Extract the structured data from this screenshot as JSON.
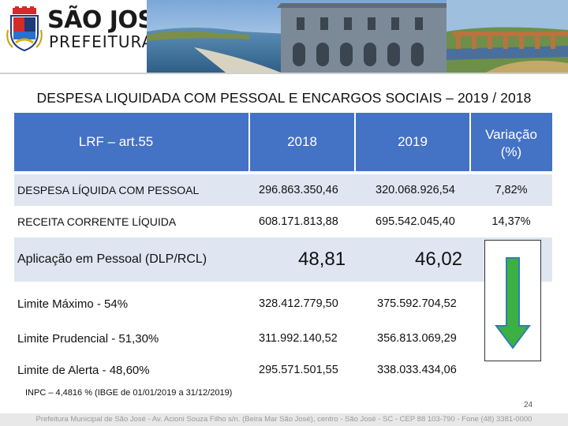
{
  "brand": {
    "name": "SÃO JOSÉ",
    "subtitle": "PREFEITURA"
  },
  "title": "DESPESA LIQUIDADA COM PESSOAL E ENCARGOS SOCIAIS – 2019 / 2018",
  "table": {
    "header": {
      "col0": "LRF – art.55",
      "col1": "2018",
      "col2": "2019",
      "col3_line1": "Variação",
      "col3_line2": "(%)"
    },
    "rows": [
      {
        "label": "DESPESA LÍQUIDA COM PESSOAL",
        "v2018": "296.863.350,46",
        "v2019": "320.068.926,54",
        "var": "7,82%"
      },
      {
        "label": "RECEITA CORRENTE LÍQUIDA",
        "v2018": "608.171.813,88",
        "v2019": "695.542.045,40",
        "var": "14,37%"
      },
      {
        "label": "Aplicação em Pessoal (DLP/RCL)",
        "v2018": "48,81",
        "v2019": "46,02"
      },
      {
        "label": "Limite Máximo - 54%",
        "v2018": "328.412.779,50",
        "v2019": "375.592.704,52"
      },
      {
        "label": "Limite Prudencial - 51,30%",
        "v2018": "311.992.140,52",
        "v2019": "356.813.069,29"
      },
      {
        "label": "Limite de Alerta - 48,60%",
        "v2018": "295.571.501,55",
        "v2019": "338.033.434,06"
      }
    ]
  },
  "footnote": "INPC – 4,4816 % (IBGE de 01/01/2019 a 31/12/2019)",
  "page_number": "24",
  "footer": "Prefeitura Municipal de São José - Av. Acioni Souza Filho s/n. (Beira Mar São José), centro - São José - SC - CEP 88 103-790 - Fone (48) 3381-0000",
  "colors": {
    "header_fill": "#4472c4",
    "band_fill": "#dfe6f2",
    "arrow": "#3cb043"
  },
  "icons": [
    "coat-of-arms-icon",
    "down-arrow-icon"
  ]
}
